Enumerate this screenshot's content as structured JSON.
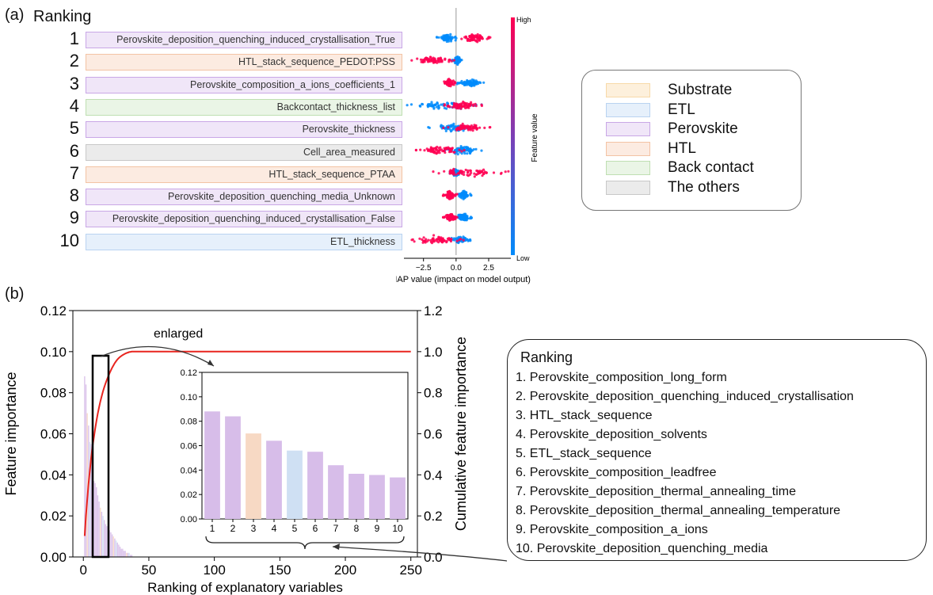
{
  "panel_a": {
    "label": "(a)",
    "ranking_title": "Ranking",
    "features": [
      {
        "rank": "1",
        "name": "Perovskite_deposition_quenching_induced_crystallisation_True",
        "category": "Perovskite"
      },
      {
        "rank": "2",
        "name": "HTL_stack_sequence_PEDOT:PSS",
        "category": "HTL"
      },
      {
        "rank": "3",
        "name": "Perovskite_composition_a_ions_coefficients_1",
        "category": "Perovskite"
      },
      {
        "rank": "4",
        "name": "Backcontact_thickness_list",
        "category": "Back contact"
      },
      {
        "rank": "5",
        "name": "Perovskite_thickness",
        "category": "Perovskite"
      },
      {
        "rank": "6",
        "name": "Cell_area_measured",
        "category": "The others"
      },
      {
        "rank": "7",
        "name": "HTL_stack_sequence_PTAA",
        "category": "HTL"
      },
      {
        "rank": "8",
        "name": "Perovskite_deposition_quenching_media_Unknown",
        "category": "Perovskite"
      },
      {
        "rank": "9",
        "name": "Perovskite_deposition_quenching_induced_crystallisation_False",
        "category": "Perovskite"
      },
      {
        "rank": "10",
        "name": "ETL_thickness",
        "category": "ETL"
      }
    ],
    "shap_axis": {
      "label": "SHAP value (impact on model output)",
      "ticks": [
        "−2.5",
        "0.0",
        "2.5"
      ],
      "tick_values": [
        -2.5,
        0,
        2.5
      ],
      "xlim": [
        -4.0,
        4.2
      ]
    },
    "colorbar": {
      "high": "High",
      "low": "Low",
      "label": "Feature value",
      "color_high": "#ff0052",
      "color_low": "#008bfb"
    },
    "legend": [
      {
        "label": "Substrate",
        "color": "#fdf0dc",
        "border": "#f7d9a8"
      },
      {
        "label": "ETL",
        "color": "#e6f0fb",
        "border": "#b9d3f1"
      },
      {
        "label": "Perovskite",
        "color": "#f0e6f8",
        "border": "#c9a7e6"
      },
      {
        "label": "HTL",
        "color": "#fcebe1",
        "border": "#f3c3a4"
      },
      {
        "label": "Back contact",
        "color": "#eaf5e6",
        "border": "#bfdfb2"
      },
      {
        "label": "The others",
        "color": "#ebebeb",
        "border": "#c8c8c8"
      }
    ]
  },
  "panel_b": {
    "label": "(b)",
    "enlarged_label": "enlarged",
    "ranking_panel": {
      "title": "Ranking",
      "items": [
        "1. Perovskite_composition_long_form",
        "2. Perovskite_deposition_quenching_induced_crystallisation",
        "3. HTL_stack_sequence",
        "4. Perovskite_deposition_solvents",
        "5. ETL_stack_sequence",
        "6. Perovskite_composition_leadfree",
        "7. Perovskite_deposition_thermal_annealing_time",
        "8. Perovskite_deposition_thermal_annealing_temperature",
        "9. Perovskite_composition_a_ions",
        "10. Perovskite_deposition_quenching_media"
      ]
    }
  },
  "chart_data": [
    {
      "type": "scatter",
      "title": "",
      "xlabel": "SHAP value (impact on model output)",
      "xlim": [
        -4.0,
        4.2
      ],
      "colorbar_label": "Feature value",
      "rows": [
        {
          "feature": "Perovskite_deposition_quenching_induced_crystallisation_True",
          "low_range": [
            -1.5,
            0.2
          ],
          "high_range": [
            0.2,
            2.7
          ]
        },
        {
          "feature": "HTL_stack_sequence_PEDOT:PSS",
          "low_range": [
            -0.3,
            0.5
          ],
          "high_range": [
            -3.8,
            0.0
          ]
        },
        {
          "feature": "Perovskite_composition_a_ions_coefficients_1",
          "low_range": [
            0.0,
            2.2
          ],
          "high_range": [
            -1.0,
            0.0
          ]
        },
        {
          "feature": "Backcontact_thickness_list",
          "low_range": [
            -3.8,
            2.0
          ],
          "high_range": [
            -1.0,
            2.0
          ]
        },
        {
          "feature": "Perovskite_thickness",
          "low_range": [
            -2.3,
            1.8
          ],
          "high_range": [
            -1.0,
            2.7
          ]
        },
        {
          "feature": "Cell_area_measured",
          "low_range": [
            -1.0,
            2.0
          ],
          "high_range": [
            -3.2,
            1.0
          ]
        },
        {
          "feature": "HTL_stack_sequence_PTAA",
          "low_range": [
            -0.5,
            0.4
          ],
          "high_range": [
            -2.5,
            4.2
          ]
        },
        {
          "feature": "Perovskite_deposition_quenching_media_Unknown",
          "low_range": [
            0.0,
            1.2
          ],
          "high_range": [
            -1.0,
            0.1
          ]
        },
        {
          "feature": "Perovskite_deposition_quenching_induced_crystallisation_False",
          "low_range": [
            0.0,
            1.2
          ],
          "high_range": [
            -1.0,
            0.1
          ]
        },
        {
          "feature": "ETL_thickness",
          "low_range": [
            -0.5,
            1.2
          ],
          "high_range": [
            -3.8,
            1.0
          ]
        }
      ]
    },
    {
      "type": "bar",
      "xlabel": "Ranking of explanatory variables",
      "ylabel": "Feature importance",
      "y2label": "Cumulative feature importance",
      "xlim": [
        -8,
        255
      ],
      "ylim": [
        0,
        0.12
      ],
      "y2lim": [
        0,
        1.2
      ],
      "xticks": [
        0,
        50,
        100,
        150,
        200,
        250
      ],
      "yticks": [
        "0.00",
        "0.02",
        "0.04",
        "0.06",
        "0.08",
        "0.10",
        "0.12"
      ],
      "y2ticks": [
        "0.0",
        "0.2",
        "0.4",
        "0.6",
        "0.8",
        "1.0",
        "1.2"
      ],
      "values": [
        0.088,
        0.084,
        0.07,
        0.064,
        0.056,
        0.055,
        0.044,
        0.037,
        0.036,
        0.034,
        0.03,
        0.027,
        0.024,
        0.022,
        0.02,
        0.018,
        0.016,
        0.015,
        0.014,
        0.013,
        0.012,
        0.011,
        0.01,
        0.009,
        0.008,
        0.007,
        0.006,
        0.005,
        0.004,
        0.004,
        0.003,
        0.003,
        0.002,
        0.002,
        0.002,
        0.001,
        0.001
      ],
      "cumulative_line": {
        "color": "#e8251f",
        "note": "rises from ~0.09 to 1.0 by rank ~60"
      }
    },
    {
      "type": "bar",
      "title": "enlarged",
      "categories": [
        "1",
        "2",
        "3",
        "4",
        "5",
        "6",
        "7",
        "8",
        "9",
        "10"
      ],
      "values": [
        0.088,
        0.084,
        0.07,
        0.064,
        0.056,
        0.055,
        0.044,
        0.037,
        0.036,
        0.034
      ],
      "colors": [
        "#d7bde9",
        "#d7bde9",
        "#f7d9c4",
        "#d7bde9",
        "#cfe0f3",
        "#d7bde9",
        "#d7bde9",
        "#d7bde9",
        "#d7bde9",
        "#d7bde9"
      ],
      "ylim": [
        0,
        0.12
      ],
      "yticks": [
        "0.00",
        "0.02",
        "0.04",
        "0.06",
        "0.08",
        "0.10",
        "0.12"
      ]
    }
  ]
}
